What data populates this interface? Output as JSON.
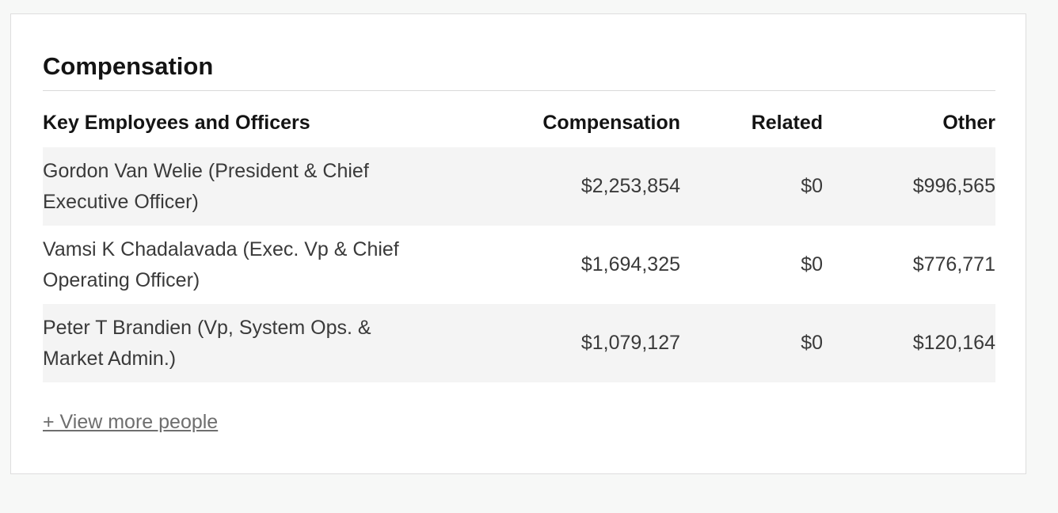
{
  "section": {
    "title": "Compensation"
  },
  "table": {
    "headers": {
      "name": "Key Employees and Officers",
      "compensation": "Compensation",
      "related": "Related",
      "other": "Other"
    },
    "rows": [
      {
        "name": "Gordon Van Welie (President & Chief Executive Officer)",
        "compensation": "$2,253,854",
        "related": "$0",
        "other": "$996,565"
      },
      {
        "name": "Vamsi K Chadalavada (Exec. Vp & Chief Operating Officer)",
        "compensation": "$1,694,325",
        "related": "$0",
        "other": "$776,771"
      },
      {
        "name": "Peter T Brandien (Vp, System Ops. & Market Admin.)",
        "compensation": "$1,079,127",
        "related": "$0",
        "other": "$120,164"
      }
    ]
  },
  "view_more": {
    "label": "+ View more people"
  },
  "colors": {
    "page_background": "#f7f8f7",
    "card_background": "#ffffff",
    "row_shade": "#f4f4f4",
    "link": "#6e6e6e"
  }
}
